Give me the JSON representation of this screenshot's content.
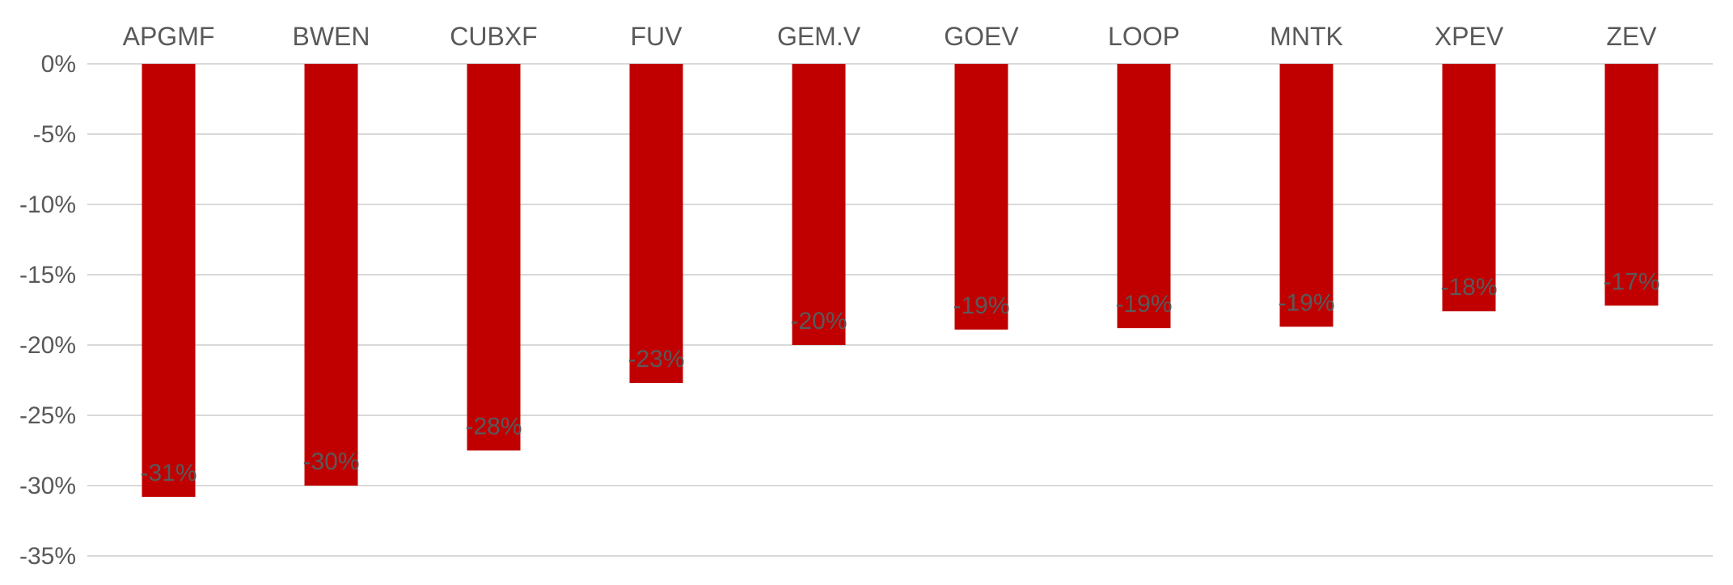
{
  "chart_data": {
    "type": "bar",
    "title": "",
    "xlabel": "",
    "ylabel": "",
    "categories": [
      "APGMF",
      "BWEN",
      "CUBXF",
      "FUV",
      "GEM.V",
      "GOEV",
      "LOOP",
      "MNTK",
      "XPEV",
      "ZEV"
    ],
    "values": [
      -30.8,
      -30.0,
      -27.5,
      -22.7,
      -20.0,
      -18.9,
      -18.8,
      -18.7,
      -17.6,
      -17.2
    ],
    "data_labels": [
      "-31%",
      "-30%",
      "-28%",
      "-23%",
      "-20%",
      "-19%",
      "-19%",
      "-19%",
      "-18%",
      "-17%"
    ],
    "ylim": [
      -35,
      0
    ],
    "yticks": [
      0,
      -5,
      -10,
      -15,
      -20,
      -25,
      -30,
      -35
    ],
    "ytick_labels": [
      "0%",
      "-5%",
      "-10%",
      "-15%",
      "-20%",
      "-25%",
      "-30%",
      "-35%"
    ],
    "x_axis_position": "top",
    "grid": true,
    "legend": "none",
    "colors": {
      "bar": "#c00000",
      "grid": "#d9d9d9",
      "text": "#595959"
    }
  }
}
